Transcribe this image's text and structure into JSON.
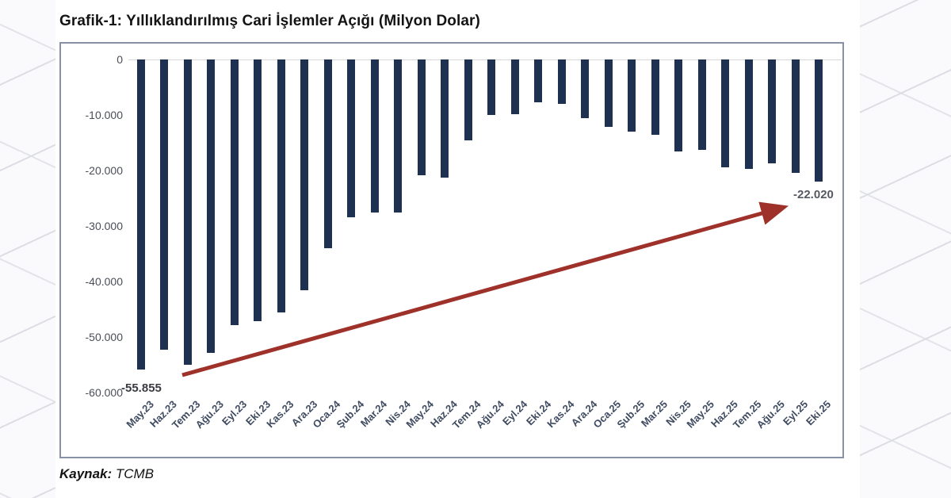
{
  "page": {
    "title": "Grafik-1: Yıllıklandırılmış Cari İşlemler Açığı (Milyon Dolar)",
    "source_label": "Kaynak:",
    "source_value": "TCMB"
  },
  "colors": {
    "bar": "#1e3150",
    "arrow": "#9e312a",
    "frame_border": "#8892a7",
    "zero_line": "#d8d8d8",
    "axis_text": "#4b4e57",
    "xlabel_text": "#3f4b61"
  },
  "chart_data": {
    "type": "bar",
    "title": "Grafik-1: Yıllıklandırılmış Cari İşlemler Açığı (Milyon Dolar)",
    "xlabel": "",
    "ylabel": "Milyon Dolar",
    "ylim": [
      -60000,
      0
    ],
    "grid": "zero-line-only",
    "legend": "none",
    "categories": [
      "May.23",
      "Haz.23",
      "Tem.23",
      "Ağu.23",
      "Eyl.23",
      "Eki.23",
      "Kas.23",
      "Ara.23",
      "Oca.24",
      "Şub.24",
      "Mar.24",
      "Nis.24",
      "May.24",
      "Haz.24",
      "Tem.24",
      "Ağu.24",
      "Eyl.24",
      "Eki.24",
      "Kas.24",
      "Ara.24",
      "Oca.25",
      "Şub.25",
      "Mar.25",
      "Nis.25",
      "May.25",
      "Haz.25",
      "Tem.25",
      "Ağu.25",
      "Eyl.25",
      "Eki.25"
    ],
    "values": [
      -55855,
      -52300,
      -55000,
      -52900,
      -47900,
      -47200,
      -45500,
      -41600,
      -34000,
      -28400,
      -27500,
      -27500,
      -20800,
      -21300,
      -14500,
      -10000,
      -9900,
      -7700,
      -8000,
      -10600,
      -12100,
      -13000,
      -13600,
      -16500,
      -16300,
      -19400,
      -19700,
      -18700,
      -20400,
      -22020
    ],
    "ytick_labels": [
      "0",
      "-10.000",
      "-20.000",
      "-30.000",
      "-40.000",
      "-50.000",
      "-60.000"
    ],
    "annotations": [
      {
        "text": "-55.855",
        "target": "May.23"
      },
      {
        "text": "-22.020",
        "target": "Eki.25"
      }
    ],
    "trend_arrow": {
      "from": "May.23",
      "to": "Eki.25",
      "direction": "up-right"
    }
  }
}
